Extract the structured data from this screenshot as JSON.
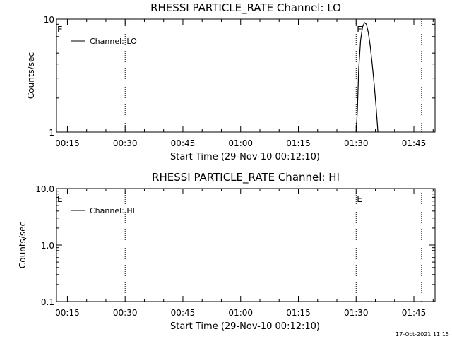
{
  "footer_timestamp": "17-Oct-2021 11:15",
  "chart_data": [
    {
      "type": "line",
      "title": "RHESSI PARTICLE_RATE Channel: LO",
      "xlabel": "Start Time (29-Nov-10 00:12:10)",
      "ylabel": "Counts/sec",
      "yscale": "log",
      "ylim": [
        1,
        10
      ],
      "xlim": [
        "00:12:10",
        "01:50:30"
      ],
      "x_tick_labels": [
        "00:15",
        "00:30",
        "00:45",
        "01:00",
        "01:15",
        "01:30",
        "01:45"
      ],
      "y_tick_labels": [
        "1",
        "10"
      ],
      "legend": {
        "position": "top-left",
        "entries": [
          "Channel: LO"
        ]
      },
      "vertical_markers": [
        "00:30",
        "01:30",
        "01:47"
      ],
      "marker_letters": [
        {
          "text": "E",
          "at": "00:12:10"
        },
        {
          "text": "E",
          "at": "01:30"
        }
      ],
      "series": [
        {
          "name": "Channel: LO",
          "points": [
            [
              "01:30:00",
              1.0
            ],
            [
              "01:30:20",
              1.6
            ],
            [
              "01:30:40",
              3.6
            ],
            [
              "01:31:10",
              6.5
            ],
            [
              "01:31:40",
              8.5
            ],
            [
              "01:32:10",
              9.3
            ],
            [
              "01:32:40",
              9.0
            ],
            [
              "01:33:10",
              7.6
            ],
            [
              "01:33:40",
              5.8
            ],
            [
              "01:34:10",
              4.0
            ],
            [
              "01:34:40",
              2.7
            ],
            [
              "01:35:10",
              1.7
            ],
            [
              "01:35:40",
              1.0
            ]
          ]
        }
      ]
    },
    {
      "type": "line",
      "title": "RHESSI PARTICLE_RATE Channel: HI",
      "xlabel": "Start Time (29-Nov-10 00:12:10)",
      "ylabel": "Counts/sec",
      "yscale": "log",
      "ylim": [
        0.1,
        10.0
      ],
      "xlim": [
        "00:12:10",
        "01:50:30"
      ],
      "x_tick_labels": [
        "00:15",
        "00:30",
        "00:45",
        "01:00",
        "01:15",
        "01:30",
        "01:45"
      ],
      "y_tick_labels": [
        "0.1",
        "1.0",
        "10.0"
      ],
      "legend": {
        "position": "top-left",
        "entries": [
          "Channel: HI"
        ]
      },
      "vertical_markers": [
        "00:30",
        "01:30",
        "01:47"
      ],
      "marker_letters": [
        {
          "text": "E",
          "at": "00:12:10"
        },
        {
          "text": "E",
          "at": "01:30"
        }
      ],
      "series": [
        {
          "name": "Channel: HI",
          "points": []
        }
      ]
    }
  ]
}
